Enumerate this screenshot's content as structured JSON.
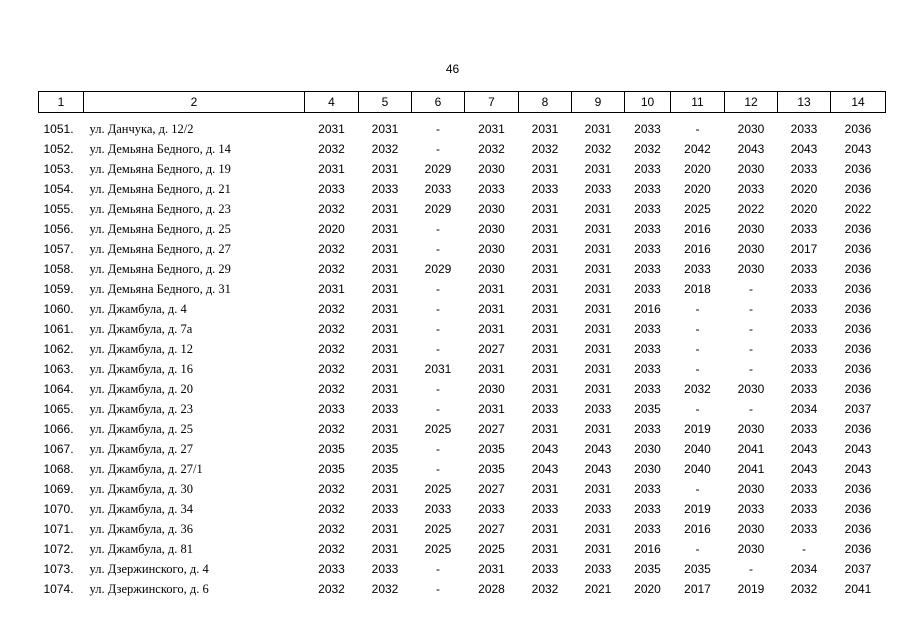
{
  "page_number": "46",
  "columns": [
    "1",
    "2",
    "4",
    "5",
    "6",
    "7",
    "8",
    "9",
    "10",
    "11",
    "12",
    "13",
    "14"
  ],
  "rows": [
    {
      "num": "1051.",
      "address": "ул. Данчука, д. 12/2",
      "values": [
        "2031",
        "2031",
        "-",
        "2031",
        "2031",
        "2031",
        "2033",
        "-",
        "2030",
        "2033",
        "2036"
      ]
    },
    {
      "num": "1052.",
      "address": "ул. Демьяна Бедного, д. 14",
      "values": [
        "2032",
        "2032",
        "-",
        "2032",
        "2032",
        "2032",
        "2032",
        "2042",
        "2043",
        "2043",
        "2043"
      ]
    },
    {
      "num": "1053.",
      "address": "ул. Демьяна Бедного, д. 19",
      "values": [
        "2031",
        "2031",
        "2029",
        "2030",
        "2031",
        "2031",
        "2033",
        "2020",
        "2030",
        "2033",
        "2036"
      ]
    },
    {
      "num": "1054.",
      "address": "ул. Демьяна Бедного, д. 21",
      "values": [
        "2033",
        "2033",
        "2033",
        "2033",
        "2033",
        "2033",
        "2033",
        "2020",
        "2033",
        "2020",
        "2036"
      ]
    },
    {
      "num": "1055.",
      "address": "ул. Демьяна Бедного, д. 23",
      "values": [
        "2032",
        "2031",
        "2029",
        "2030",
        "2031",
        "2031",
        "2033",
        "2025",
        "2022",
        "2020",
        "2022"
      ]
    },
    {
      "num": "1056.",
      "address": "ул. Демьяна Бедного, д. 25",
      "values": [
        "2020",
        "2031",
        "-",
        "2030",
        "2031",
        "2031",
        "2033",
        "2016",
        "2030",
        "2033",
        "2036"
      ]
    },
    {
      "num": "1057.",
      "address": "ул. Демьяна Бедного, д. 27",
      "values": [
        "2032",
        "2031",
        "-",
        "2030",
        "2031",
        "2031",
        "2033",
        "2016",
        "2030",
        "2017",
        "2036"
      ]
    },
    {
      "num": "1058.",
      "address": "ул. Демьяна Бедного, д. 29",
      "values": [
        "2032",
        "2031",
        "2029",
        "2030",
        "2031",
        "2031",
        "2033",
        "2033",
        "2030",
        "2033",
        "2036"
      ]
    },
    {
      "num": "1059.",
      "address": "ул. Демьяна Бедного, д. 31",
      "values": [
        "2031",
        "2031",
        "-",
        "2031",
        "2031",
        "2031",
        "2033",
        "2018",
        "-",
        "2033",
        "2036"
      ]
    },
    {
      "num": "1060.",
      "address": "ул. Джамбула, д. 4",
      "values": [
        "2032",
        "2031",
        "-",
        "2031",
        "2031",
        "2031",
        "2016",
        "-",
        "-",
        "2033",
        "2036"
      ]
    },
    {
      "num": "1061.",
      "address": "ул. Джамбула, д. 7а",
      "values": [
        "2032",
        "2031",
        "-",
        "2031",
        "2031",
        "2031",
        "2033",
        "-",
        "-",
        "2033",
        "2036"
      ]
    },
    {
      "num": "1062.",
      "address": "ул. Джамбула, д. 12",
      "values": [
        "2032",
        "2031",
        "-",
        "2027",
        "2031",
        "2031",
        "2033",
        "-",
        "-",
        "2033",
        "2036"
      ]
    },
    {
      "num": "1063.",
      "address": "ул. Джамбула, д. 16",
      "values": [
        "2032",
        "2031",
        "2031",
        "2031",
        "2031",
        "2031",
        "2033",
        "-",
        "-",
        "2033",
        "2036"
      ]
    },
    {
      "num": "1064.",
      "address": "ул. Джамбула, д. 20",
      "values": [
        "2032",
        "2031",
        "-",
        "2030",
        "2031",
        "2031",
        "2033",
        "2032",
        "2030",
        "2033",
        "2036"
      ]
    },
    {
      "num": "1065.",
      "address": "ул. Джамбула, д. 23",
      "values": [
        "2033",
        "2033",
        "-",
        "2031",
        "2033",
        "2033",
        "2035",
        "-",
        "-",
        "2034",
        "2037"
      ]
    },
    {
      "num": "1066.",
      "address": "ул. Джамбула, д. 25",
      "values": [
        "2032",
        "2031",
        "2025",
        "2027",
        "2031",
        "2031",
        "2033",
        "2019",
        "2030",
        "2033",
        "2036"
      ]
    },
    {
      "num": "1067.",
      "address": "ул. Джамбула, д. 27",
      "values": [
        "2035",
        "2035",
        "-",
        "2035",
        "2043",
        "2043",
        "2030",
        "2040",
        "2041",
        "2043",
        "2043"
      ]
    },
    {
      "num": "1068.",
      "address": "ул. Джамбула, д. 27/1",
      "values": [
        "2035",
        "2035",
        "-",
        "2035",
        "2043",
        "2043",
        "2030",
        "2040",
        "2041",
        "2043",
        "2043"
      ]
    },
    {
      "num": "1069.",
      "address": "ул. Джамбула, д. 30",
      "values": [
        "2032",
        "2031",
        "2025",
        "2027",
        "2031",
        "2031",
        "2033",
        "-",
        "2030",
        "2033",
        "2036"
      ]
    },
    {
      "num": "1070.",
      "address": "ул. Джамбула, д. 34",
      "values": [
        "2032",
        "2033",
        "2033",
        "2033",
        "2033",
        "2033",
        "2033",
        "2019",
        "2033",
        "2033",
        "2036"
      ]
    },
    {
      "num": "1071.",
      "address": "ул. Джамбула, д. 36",
      "values": [
        "2032",
        "2031",
        "2025",
        "2027",
        "2031",
        "2031",
        "2033",
        "2016",
        "2030",
        "2033",
        "2036"
      ]
    },
    {
      "num": "1072.",
      "address": "ул. Джамбула, д. 81",
      "values": [
        "2032",
        "2031",
        "2025",
        "2025",
        "2031",
        "2031",
        "2016",
        "-",
        "2030",
        "-",
        "2036"
      ]
    },
    {
      "num": "1073.",
      "address": "ул. Дзержинского, д. 4",
      "values": [
        "2033",
        "2033",
        "-",
        "2031",
        "2033",
        "2033",
        "2035",
        "2035",
        "-",
        "2034",
        "2037"
      ]
    },
    {
      "num": "1074.",
      "address": "ул. Дзержинского, д. 6",
      "values": [
        "2032",
        "2032",
        "-",
        "2028",
        "2032",
        "2021",
        "2020",
        "2017",
        "2019",
        "2032",
        "2041"
      ]
    }
  ]
}
